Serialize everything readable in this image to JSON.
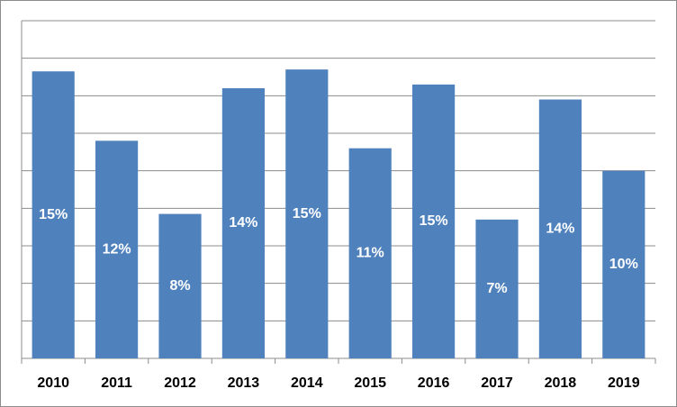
{
  "chart_data": {
    "type": "bar",
    "categories": [
      "2010",
      "2011",
      "2012",
      "2013",
      "2014",
      "2015",
      "2016",
      "2017",
      "2018",
      "2019"
    ],
    "values": [
      15.3,
      11.6,
      7.7,
      14.4,
      15.4,
      11.2,
      14.6,
      7.4,
      13.8,
      10.0
    ],
    "value_labels": [
      "15%",
      "12%",
      "8%",
      "14%",
      "15%",
      "11%",
      "15%",
      "7%",
      "14%",
      "10%"
    ],
    "color": "#4f81bd",
    "ylim": [
      0,
      18
    ],
    "yticks": [
      0,
      2,
      4,
      6,
      8,
      10,
      12,
      14,
      16,
      18
    ],
    "grid": true
  }
}
